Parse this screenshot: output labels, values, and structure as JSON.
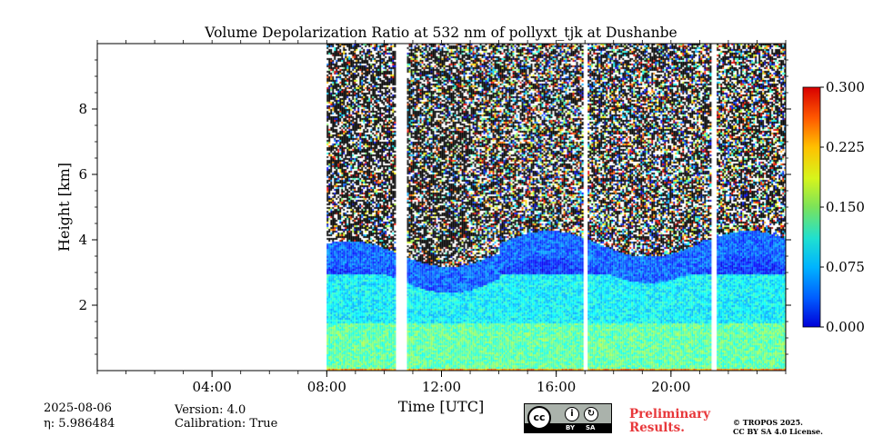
{
  "chart_data": {
    "type": "heatmap",
    "title": "Volume Depolarization Ratio at 532 nm of pollyxt_tjk at Dushanbe",
    "xlabel": "Time [UTC]",
    "ylabel": "Height [km]",
    "xlim_hours": [
      0,
      24
    ],
    "ylim_km": [
      0,
      10
    ],
    "x_ticks": [
      {
        "hour": 4,
        "label": "04:00"
      },
      {
        "hour": 8,
        "label": "08:00"
      },
      {
        "hour": 12,
        "label": "12:00"
      },
      {
        "hour": 16,
        "label": "16:00"
      },
      {
        "hour": 20,
        "label": "20:00"
      }
    ],
    "y_ticks": [
      {
        "value": 2,
        "label": "2"
      },
      {
        "value": 4,
        "label": "4"
      },
      {
        "value": 6,
        "label": "6"
      },
      {
        "value": 8,
        "label": "8"
      }
    ],
    "colorbar": {
      "min": 0.0,
      "max": 0.3,
      "ticks": [
        "0.000",
        "0.075",
        "0.150",
        "0.225",
        "0.300"
      ],
      "colormap": "jet"
    },
    "data_segments_hours": [
      [
        8.0,
        10.4
      ],
      [
        10.8,
        16.9
      ],
      [
        17.1,
        21.4
      ],
      [
        21.6,
        24.0
      ]
    ],
    "profile_layers": [
      {
        "from_km": 0.0,
        "to_km": 0.1,
        "value": 0.22
      },
      {
        "from_km": 0.1,
        "to_km": 1.5,
        "value": 0.14
      },
      {
        "from_km": 1.5,
        "to_km": 3.0,
        "value": 0.11
      },
      {
        "from_km": 3.0,
        "to_km": 4.0,
        "value": 0.05
      },
      {
        "from_km": 4.0,
        "to_km": 10.0,
        "value": "noisy"
      }
    ]
  },
  "footer": {
    "date": "2025-08-06",
    "eta_label": "η: 5.986484",
    "version": "Version: 4.0",
    "calibration": "Calibration: True",
    "license_badge": {
      "cc": "cc",
      "by": "BY",
      "sa": "SA"
    },
    "preliminary_line1": "Preliminary",
    "preliminary_line2": "Results.",
    "copyright_line1": "© TROPOS 2025.",
    "copyright_line2": "CC BY SA 4.0 License."
  }
}
